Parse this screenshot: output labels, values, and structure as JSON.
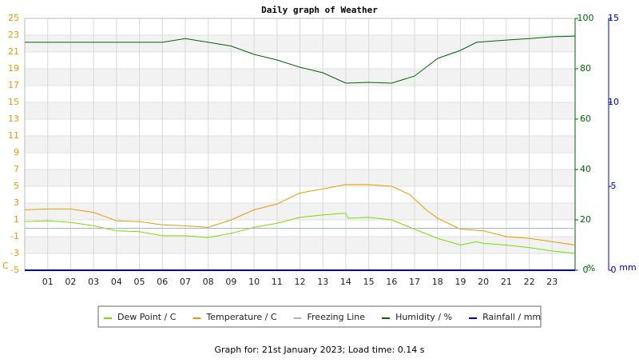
{
  "chart_data": {
    "type": "line",
    "title": "Daily graph of Weather",
    "footer": "Graph for: 21st January 2023; Load time: 0.14 s",
    "ylabel": "C",
    "y2label": "%",
    "y3label": "mm",
    "xlim": [
      0,
      24
    ],
    "xticks": [
      {
        "value": 1,
        "label": "01"
      },
      {
        "value": 2,
        "label": "02"
      },
      {
        "value": 3,
        "label": "03"
      },
      {
        "value": 4,
        "label": "04"
      },
      {
        "value": 5,
        "label": "05"
      },
      {
        "value": 6,
        "label": "06"
      },
      {
        "value": 7,
        "label": "07"
      },
      {
        "value": 8,
        "label": "08"
      },
      {
        "value": 9,
        "label": "09"
      },
      {
        "value": 10,
        "label": "10"
      },
      {
        "value": 11,
        "label": "11"
      },
      {
        "value": 12,
        "label": "12"
      },
      {
        "value": 13,
        "label": "13"
      },
      {
        "value": 14,
        "label": "14"
      },
      {
        "value": 15,
        "label": "15"
      },
      {
        "value": 16,
        "label": "16"
      },
      {
        "value": 17,
        "label": "17"
      },
      {
        "value": 18,
        "label": "18"
      },
      {
        "value": 19,
        "label": "19"
      },
      {
        "value": 20,
        "label": "20"
      },
      {
        "value": 21,
        "label": "21"
      },
      {
        "value": 22,
        "label": "22"
      },
      {
        "value": 23,
        "label": "23"
      }
    ],
    "ylim": [
      -5,
      25
    ],
    "yticks": [
      -5,
      -3,
      -1,
      1,
      3,
      5,
      7,
      9,
      11,
      13,
      15,
      17,
      19,
      21,
      23,
      25
    ],
    "y2lim": [
      0,
      100
    ],
    "y2ticks": [
      0,
      20,
      40,
      60,
      80,
      100
    ],
    "y3lim": [
      0,
      15
    ],
    "y3ticks": [
      0,
      5,
      10,
      15
    ],
    "grid": true,
    "legend": "bottom",
    "series": [
      {
        "name": "Dew Point / C",
        "color": "#77dd00",
        "x": [
          0,
          1,
          2,
          3,
          4,
          5,
          6,
          7,
          8,
          9,
          10,
          11,
          12,
          13,
          14,
          14.1,
          15,
          16,
          17,
          18,
          19,
          19.7,
          20,
          21,
          22,
          23,
          24
        ],
        "values": [
          0.8,
          0.9,
          0.7,
          0.3,
          -0.3,
          -0.4,
          -0.9,
          -0.9,
          -1.1,
          -0.6,
          0.1,
          0.6,
          1.3,
          1.6,
          1.8,
          1.2,
          1.3,
          1.0,
          -0.1,
          -1.2,
          -2.0,
          -1.6,
          -1.8,
          -2.0,
          -2.3,
          -2.7,
          -3.0
        ]
      },
      {
        "name": "Temperature / C",
        "color": "#e69a00",
        "x": [
          0,
          1,
          2,
          3,
          4,
          5,
          6,
          7,
          8,
          9,
          10,
          11,
          12,
          13,
          14,
          15,
          16,
          16.8,
          17.5,
          18,
          19,
          20,
          21,
          22,
          23,
          24
        ],
        "values": [
          2.2,
          2.3,
          2.3,
          1.9,
          0.9,
          0.8,
          0.4,
          0.3,
          0.1,
          1.0,
          2.2,
          2.9,
          4.2,
          4.7,
          5.2,
          5.2,
          5.0,
          4.0,
          2.2,
          1.2,
          -0.1,
          -0.3,
          -1.0,
          -1.2,
          -1.6,
          -2.0
        ]
      },
      {
        "name": "Freezing Line",
        "color": "#a0b8c8",
        "x": [
          0,
          24
        ],
        "values": [
          0,
          0
        ]
      },
      {
        "name": "Humidity / %",
        "color": "#006400",
        "axis": "y2",
        "x": [
          0,
          3,
          6,
          7,
          9,
          10,
          11,
          12,
          13,
          14,
          15,
          16,
          17,
          18,
          19,
          19.7,
          21,
          22,
          23,
          24
        ],
        "values": [
          90.5,
          90.5,
          90.5,
          92,
          89,
          85.7,
          83.5,
          80.6,
          78.4,
          74.3,
          74.6,
          74.3,
          77.1,
          84.1,
          87.3,
          90.5,
          91.4,
          92,
          92.7,
          93
        ]
      },
      {
        "name": "Rainfall / mm",
        "color": "#0000cc",
        "axis": "y3",
        "x": [
          0,
          24
        ],
        "values": [
          0,
          0
        ]
      }
    ]
  }
}
